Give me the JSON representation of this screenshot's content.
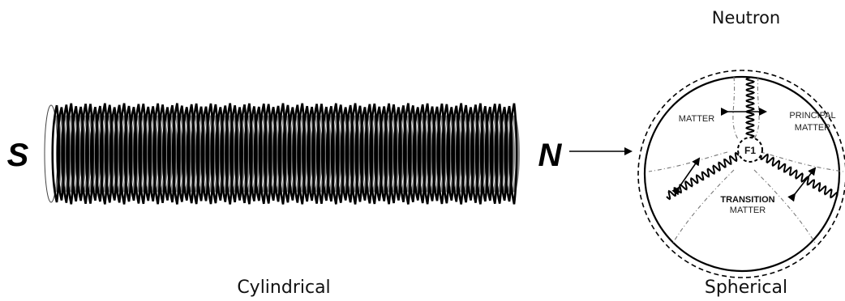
{
  "labels": {
    "neutron": "Neutron",
    "cylindrical": "Cylindrical",
    "spherical": "Spherical",
    "south_pole": "S",
    "north_pole": "N"
  },
  "regions": {
    "matter": "MATTER",
    "principal_line1": "PRINCIPAL",
    "principal_line2": "MATTER",
    "transition_line1": "TRANSITION",
    "transition_line2": "MATTER",
    "center": "F1"
  },
  "colors": {
    "ink": "#000000",
    "shadow_coil": "#8a8a8a",
    "boundary": "#777777"
  }
}
